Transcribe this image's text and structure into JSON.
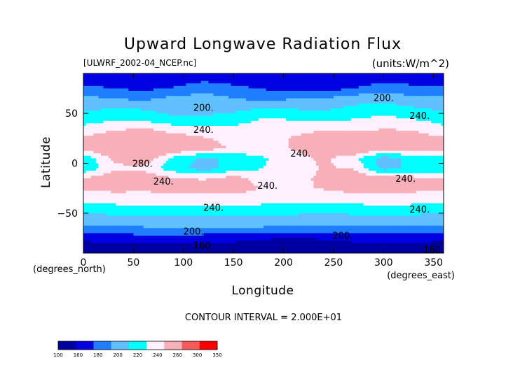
{
  "chart_data": {
    "type": "heatmap",
    "title": "Upward Longwave Radiation Flux",
    "file_label": "[ULWRF_2002-04_NCEP.nc]",
    "units_label": "(units:W/m^2)",
    "xlabel": "Longitude",
    "ylabel": "Latitude",
    "x_unit_note": "(degrees_east)",
    "y_unit_note": "(degrees_north)",
    "xlim": [
      0,
      360
    ],
    "ylim": [
      -90,
      90
    ],
    "x_ticks": [
      0,
      50,
      100,
      150,
      200,
      250,
      300,
      350
    ],
    "y_ticks": [
      -50,
      0,
      50
    ],
    "contour_interval_text": "CONTOUR INTERVAL = 2.000E+01",
    "color_levels": [
      100,
      160,
      180,
      200,
      220,
      240,
      260,
      300,
      350
    ],
    "level_colors": [
      "#0000a0",
      "#0000e0",
      "#1f7fff",
      "#60c0ff",
      "#00ffff",
      "#fff0ff",
      "#f8b0b8",
      "#f85a5a",
      "#ff0000"
    ],
    "latitudes": [
      85,
      75,
      65,
      55,
      45,
      35,
      25,
      15,
      5,
      -5,
      -15,
      -25,
      -35,
      -45,
      -55,
      -65,
      -75,
      -85
    ],
    "longitudes": [
      0,
      30,
      60,
      90,
      120,
      150,
      180,
      210,
      240,
      270,
      300,
      330
    ],
    "values": [
      [
        170,
        165,
        160,
        168,
        175,
        170,
        165,
        162,
        160,
        168,
        175,
        170
      ],
      [
        185,
        180,
        175,
        182,
        190,
        185,
        178,
        175,
        172,
        180,
        188,
        185
      ],
      [
        205,
        200,
        195,
        205,
        210,
        200,
        195,
        198,
        200,
        210,
        215,
        205
      ],
      [
        215,
        220,
        218,
        212,
        205,
        210,
        222,
        218,
        215,
        225,
        228,
        222
      ],
      [
        230,
        235,
        232,
        222,
        225,
        235,
        240,
        238,
        235,
        238,
        245,
        238
      ],
      [
        245,
        255,
        260,
        250,
        248,
        242,
        245,
        252,
        258,
        255,
        260,
        258
      ],
      [
        262,
        275,
        285,
        270,
        262,
        252,
        250,
        262,
        270,
        275,
        265,
        268
      ],
      [
        268,
        285,
        290,
        280,
        270,
        258,
        252,
        262,
        280,
        290,
        272,
        272
      ],
      [
        225,
        265,
        275,
        235,
        215,
        225,
        238,
        250,
        265,
        245,
        210,
        228
      ],
      [
        222,
        255,
        255,
        228,
        210,
        230,
        240,
        248,
        262,
        258,
        212,
        225
      ],
      [
        262,
        272,
        275,
        262,
        258,
        268,
        250,
        252,
        265,
        275,
        268,
        265
      ],
      [
        262,
        268,
        265,
        268,
        270,
        272,
        258,
        255,
        262,
        270,
        272,
        268
      ],
      [
        245,
        248,
        250,
        252,
        254,
        252,
        246,
        244,
        246,
        248,
        250,
        248
      ],
      [
        232,
        235,
        236,
        236,
        238,
        238,
        236,
        234,
        232,
        234,
        236,
        235
      ],
      [
        210,
        212,
        214,
        214,
        216,
        216,
        214,
        212,
        210,
        212,
        214,
        212
      ],
      [
        195,
        197,
        198,
        198,
        200,
        200,
        198,
        196,
        195,
        196,
        198,
        197
      ],
      [
        165,
        168,
        170,
        172,
        168,
        165,
        162,
        160,
        162,
        165,
        168,
        166
      ],
      [
        150,
        152,
        150,
        148,
        150,
        152,
        150,
        148,
        150,
        152,
        155,
        152
      ]
    ],
    "contour_labels": [
      {
        "text": "200.",
        "lon": 120,
        "lat": 56
      },
      {
        "text": "200.",
        "lon": 300,
        "lat": 66
      },
      {
        "text": "240.",
        "lon": 336,
        "lat": 48
      },
      {
        "text": "240.",
        "lon": 120,
        "lat": 34
      },
      {
        "text": "240.",
        "lon": 217,
        "lat": 10
      },
      {
        "text": "280.",
        "lon": 59,
        "lat": 0
      },
      {
        "text": "240.",
        "lon": 80,
        "lat": -18
      },
      {
        "text": "240.",
        "lon": 184,
        "lat": -22
      },
      {
        "text": "240.",
        "lon": 322,
        "lat": -15
      },
      {
        "text": "240.",
        "lon": 130,
        "lat": -44
      },
      {
        "text": "240.",
        "lon": 336,
        "lat": -46
      },
      {
        "text": "200.",
        "lon": 110,
        "lat": -68
      },
      {
        "text": "200.",
        "lon": 259,
        "lat": -72
      },
      {
        "text": "160.",
        "lon": 120,
        "lat": -82
      },
      {
        "text": "160.",
        "lon": 350,
        "lat": -86
      }
    ]
  },
  "colorbar": {
    "tick_labels": [
      "100",
      "160",
      "180",
      "200",
      "220",
      "240",
      "260",
      "300",
      "350"
    ]
  }
}
